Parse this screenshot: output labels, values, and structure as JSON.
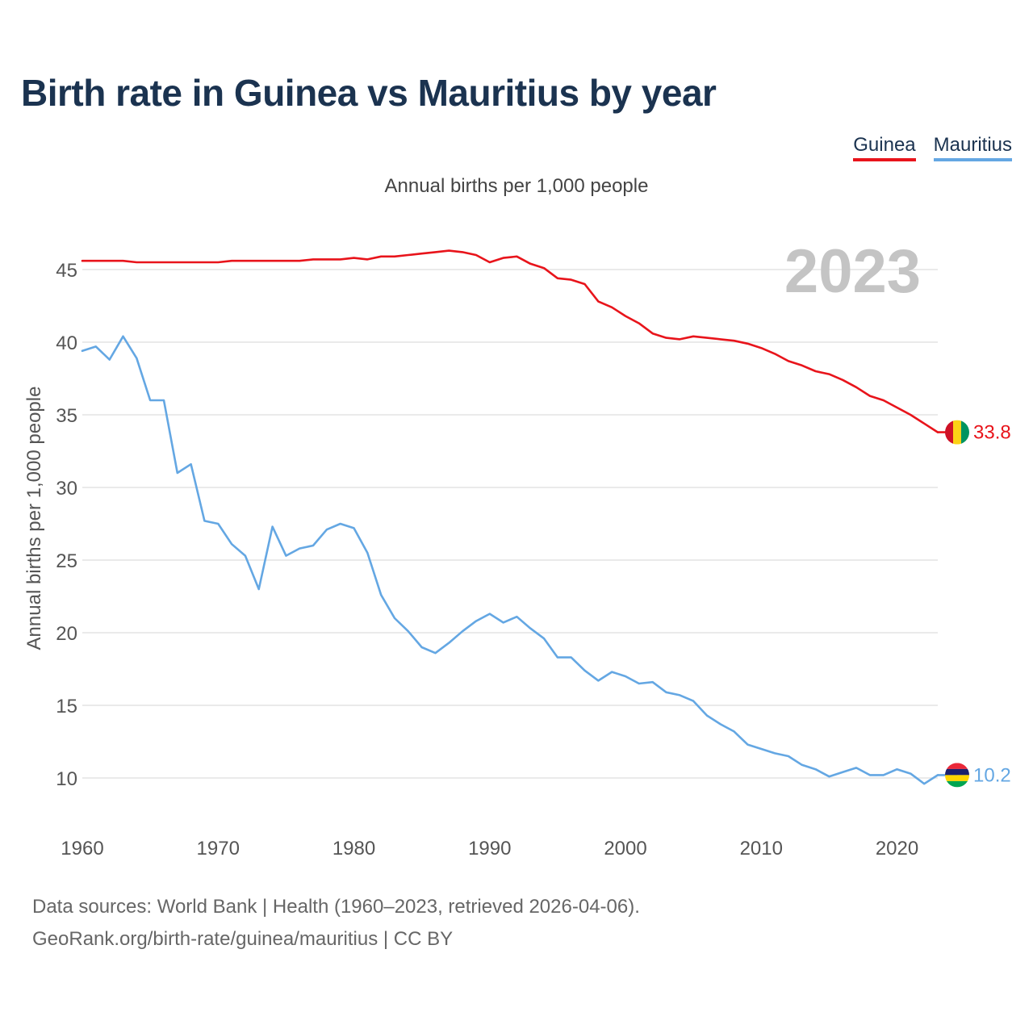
{
  "title": "Birth rate in Guinea vs Mauritius by year",
  "subtitle": "Annual births per 1,000 people",
  "big_year": "2023",
  "legend": [
    {
      "name": "Guinea",
      "color": "#e8141b"
    },
    {
      "name": "Mauritius",
      "color": "#64a7e3"
    }
  ],
  "footer": {
    "line1": "Data sources: World Bank | Health (1960–2023, retrieved 2026-04-06).",
    "line2": "GeoRank.org/birth-rate/guinea/mauritius | CC BY"
  },
  "chart_data": {
    "type": "line",
    "title": "Birth rate in Guinea vs Mauritius by year",
    "xlabel": "",
    "ylabel": "Annual births per 1,000 people",
    "xlim": [
      1960,
      2023
    ],
    "ylim": [
      7,
      48
    ],
    "grid": true,
    "x_ticks": [
      "1960",
      "1970",
      "1980",
      "1990",
      "2000",
      "2010",
      "2020"
    ],
    "y_ticks": [
      "10",
      "15",
      "20",
      "25",
      "30",
      "35",
      "40",
      "45"
    ],
    "x": [
      1960,
      1961,
      1962,
      1963,
      1964,
      1965,
      1966,
      1967,
      1968,
      1969,
      1970,
      1971,
      1972,
      1973,
      1974,
      1975,
      1976,
      1977,
      1978,
      1979,
      1980,
      1981,
      1982,
      1983,
      1984,
      1985,
      1986,
      1987,
      1988,
      1989,
      1990,
      1991,
      1992,
      1993,
      1994,
      1995,
      1996,
      1997,
      1998,
      1999,
      2000,
      2001,
      2002,
      2003,
      2004,
      2005,
      2006,
      2007,
      2008,
      2009,
      2010,
      2011,
      2012,
      2013,
      2014,
      2015,
      2016,
      2017,
      2018,
      2019,
      2020,
      2021,
      2022,
      2023
    ],
    "series": [
      {
        "name": "Guinea",
        "color": "#e8141b",
        "end_label": "33.8",
        "values": [
          45.6,
          45.6,
          45.6,
          45.6,
          45.5,
          45.5,
          45.5,
          45.5,
          45.5,
          45.5,
          45.5,
          45.6,
          45.6,
          45.6,
          45.6,
          45.6,
          45.6,
          45.7,
          45.7,
          45.7,
          45.8,
          45.7,
          45.9,
          45.9,
          46.0,
          46.1,
          46.2,
          46.3,
          46.2,
          46.0,
          45.5,
          45.8,
          45.9,
          45.4,
          45.1,
          44.4,
          44.3,
          44.0,
          42.8,
          42.4,
          41.8,
          41.3,
          40.6,
          40.3,
          40.2,
          40.4,
          40.3,
          40.2,
          40.1,
          39.9,
          39.6,
          39.2,
          38.7,
          38.4,
          38.0,
          37.8,
          37.4,
          36.9,
          36.3,
          36.0,
          35.5,
          35.0,
          34.4,
          33.8
        ]
      },
      {
        "name": "Mauritius",
        "color": "#64a7e3",
        "end_label": "10.2",
        "values": [
          39.4,
          39.7,
          38.8,
          40.4,
          38.9,
          36.0,
          36.0,
          31.0,
          31.6,
          27.7,
          27.5,
          26.1,
          25.3,
          23.0,
          27.3,
          25.3,
          25.8,
          26.0,
          27.1,
          27.5,
          27.2,
          25.5,
          22.6,
          21.0,
          20.1,
          19.0,
          18.6,
          19.3,
          20.1,
          20.8,
          21.3,
          20.7,
          21.1,
          20.3,
          19.6,
          18.3,
          18.3,
          17.4,
          16.7,
          17.3,
          17.0,
          16.5,
          16.6,
          15.9,
          15.7,
          15.3,
          14.3,
          13.7,
          13.2,
          12.3,
          12.0,
          11.7,
          11.5,
          10.9,
          10.6,
          10.1,
          10.4,
          10.7,
          10.2,
          10.2,
          10.6,
          10.3,
          9.6,
          10.2
        ]
      }
    ]
  }
}
